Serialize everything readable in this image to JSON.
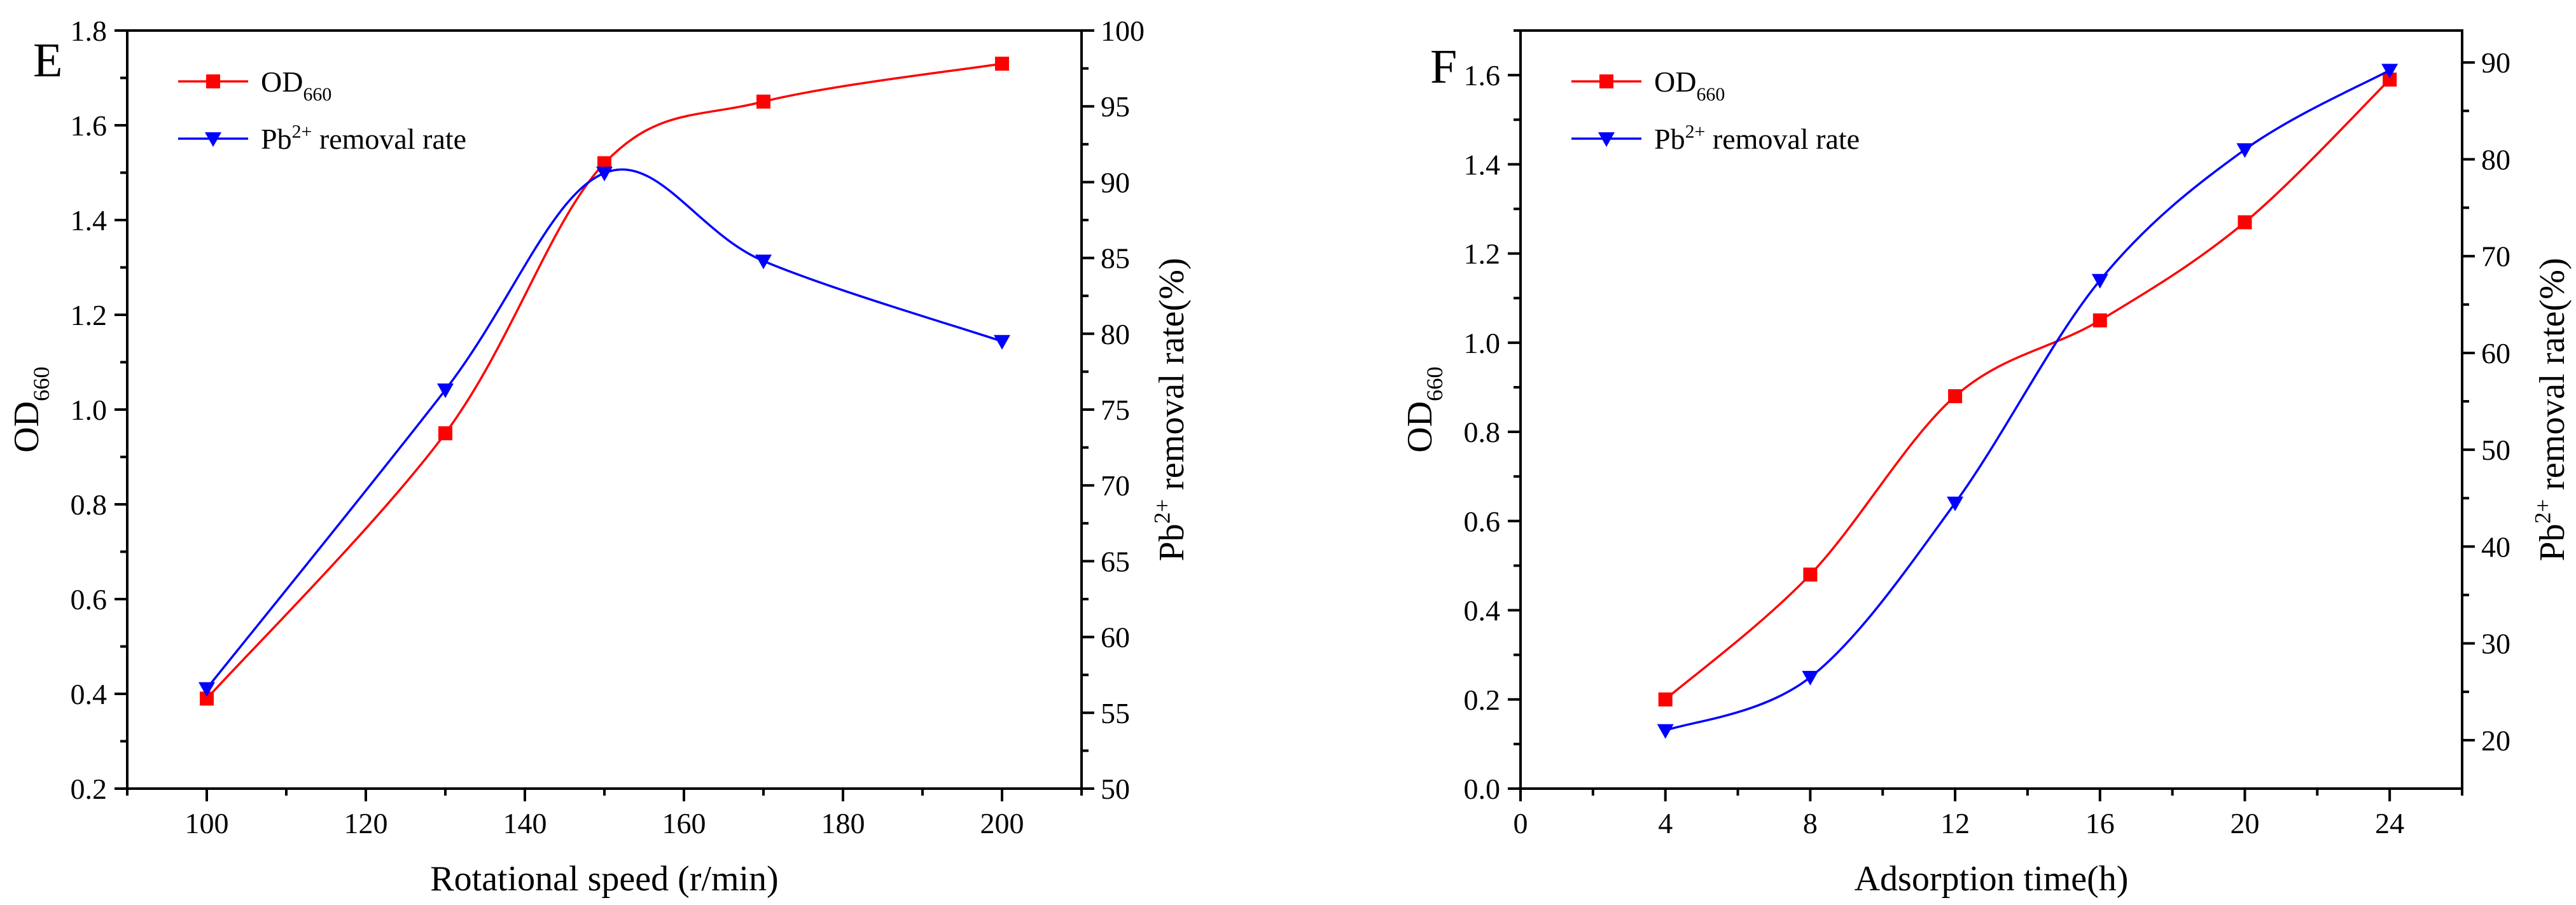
{
  "figure": {
    "panels": [
      "E",
      "F"
    ]
  },
  "chart_data": [
    {
      "panel_label": "E",
      "type": "line",
      "title": "",
      "xlabel": "Rotational speed (r/min)",
      "ylabel": {
        "base": "OD",
        "sub": "660"
      },
      "y2label": {
        "base": "Pb",
        "sup": "2+",
        "rest": " removal rate(%)"
      },
      "xlim": [
        90,
        210
      ],
      "xticks": [
        100,
        120,
        140,
        160,
        180,
        200
      ],
      "ylim": [
        0.2,
        1.8
      ],
      "yticks": [
        0.2,
        0.4,
        0.6,
        0.8,
        1.0,
        1.2,
        1.4,
        1.6,
        1.8
      ],
      "y2lim": [
        50,
        100
      ],
      "y2ticks": [
        50,
        55,
        60,
        65,
        70,
        75,
        80,
        85,
        90,
        95,
        100
      ],
      "legend_position": "top-left",
      "series": [
        {
          "name": "OD660",
          "legend": {
            "base": "OD",
            "sub": "660",
            "sup": "",
            "rest": ""
          },
          "axis": "left",
          "color": "#ff0000",
          "marker": "square",
          "x": [
            100,
            130,
            150,
            170,
            200
          ],
          "values": [
            0.39,
            0.95,
            1.52,
            1.65,
            1.73
          ]
        },
        {
          "name": "Pb2+ removal rate",
          "legend": {
            "base": "Pb",
            "sub": "",
            "sup": "2+",
            "rest": " removal rate"
          },
          "axis": "right",
          "color": "#0000ff",
          "marker": "triangle-down",
          "x": [
            100,
            130,
            150,
            170,
            200
          ],
          "values": [
            56.6,
            76.3,
            90.6,
            84.8,
            79.5
          ]
        }
      ]
    },
    {
      "panel_label": "F",
      "type": "line",
      "title": "",
      "xlabel": "Adsorption time(h)",
      "ylabel": {
        "base": "OD",
        "sub": "660"
      },
      "y2label": {
        "base": "Pb",
        "sup": "2+",
        "rest": " removal rate(%)"
      },
      "xlim": [
        0,
        26
      ],
      "xticks": [
        0,
        4,
        8,
        12,
        16,
        20,
        24
      ],
      "ylim": [
        0.0,
        1.7
      ],
      "yticks": [
        0.0,
        0.2,
        0.4,
        0.6,
        0.8,
        1.0,
        1.2,
        1.4,
        1.6
      ],
      "y2lim": [
        15,
        93.3
      ],
      "y2ticks": [
        20,
        30,
        40,
        50,
        60,
        70,
        80,
        90
      ],
      "legend_position": "top-left",
      "series": [
        {
          "name": "OD660",
          "legend": {
            "base": "OD",
            "sub": "660",
            "sup": "",
            "rest": ""
          },
          "axis": "left",
          "color": "#ff0000",
          "marker": "square",
          "x": [
            4,
            8,
            12,
            16,
            20,
            24
          ],
          "values": [
            0.2,
            0.48,
            0.88,
            1.05,
            1.27,
            1.59
          ]
        },
        {
          "name": "Pb2+ removal rate",
          "legend": {
            "base": "Pb",
            "sub": "",
            "sup": "2+",
            "rest": " removal rate"
          },
          "axis": "right",
          "color": "#0000ff",
          "marker": "triangle-down",
          "x": [
            4,
            8,
            12,
            16,
            20,
            24
          ],
          "values": [
            21.0,
            26.5,
            44.5,
            67.5,
            81.0,
            89.2
          ]
        }
      ]
    }
  ]
}
